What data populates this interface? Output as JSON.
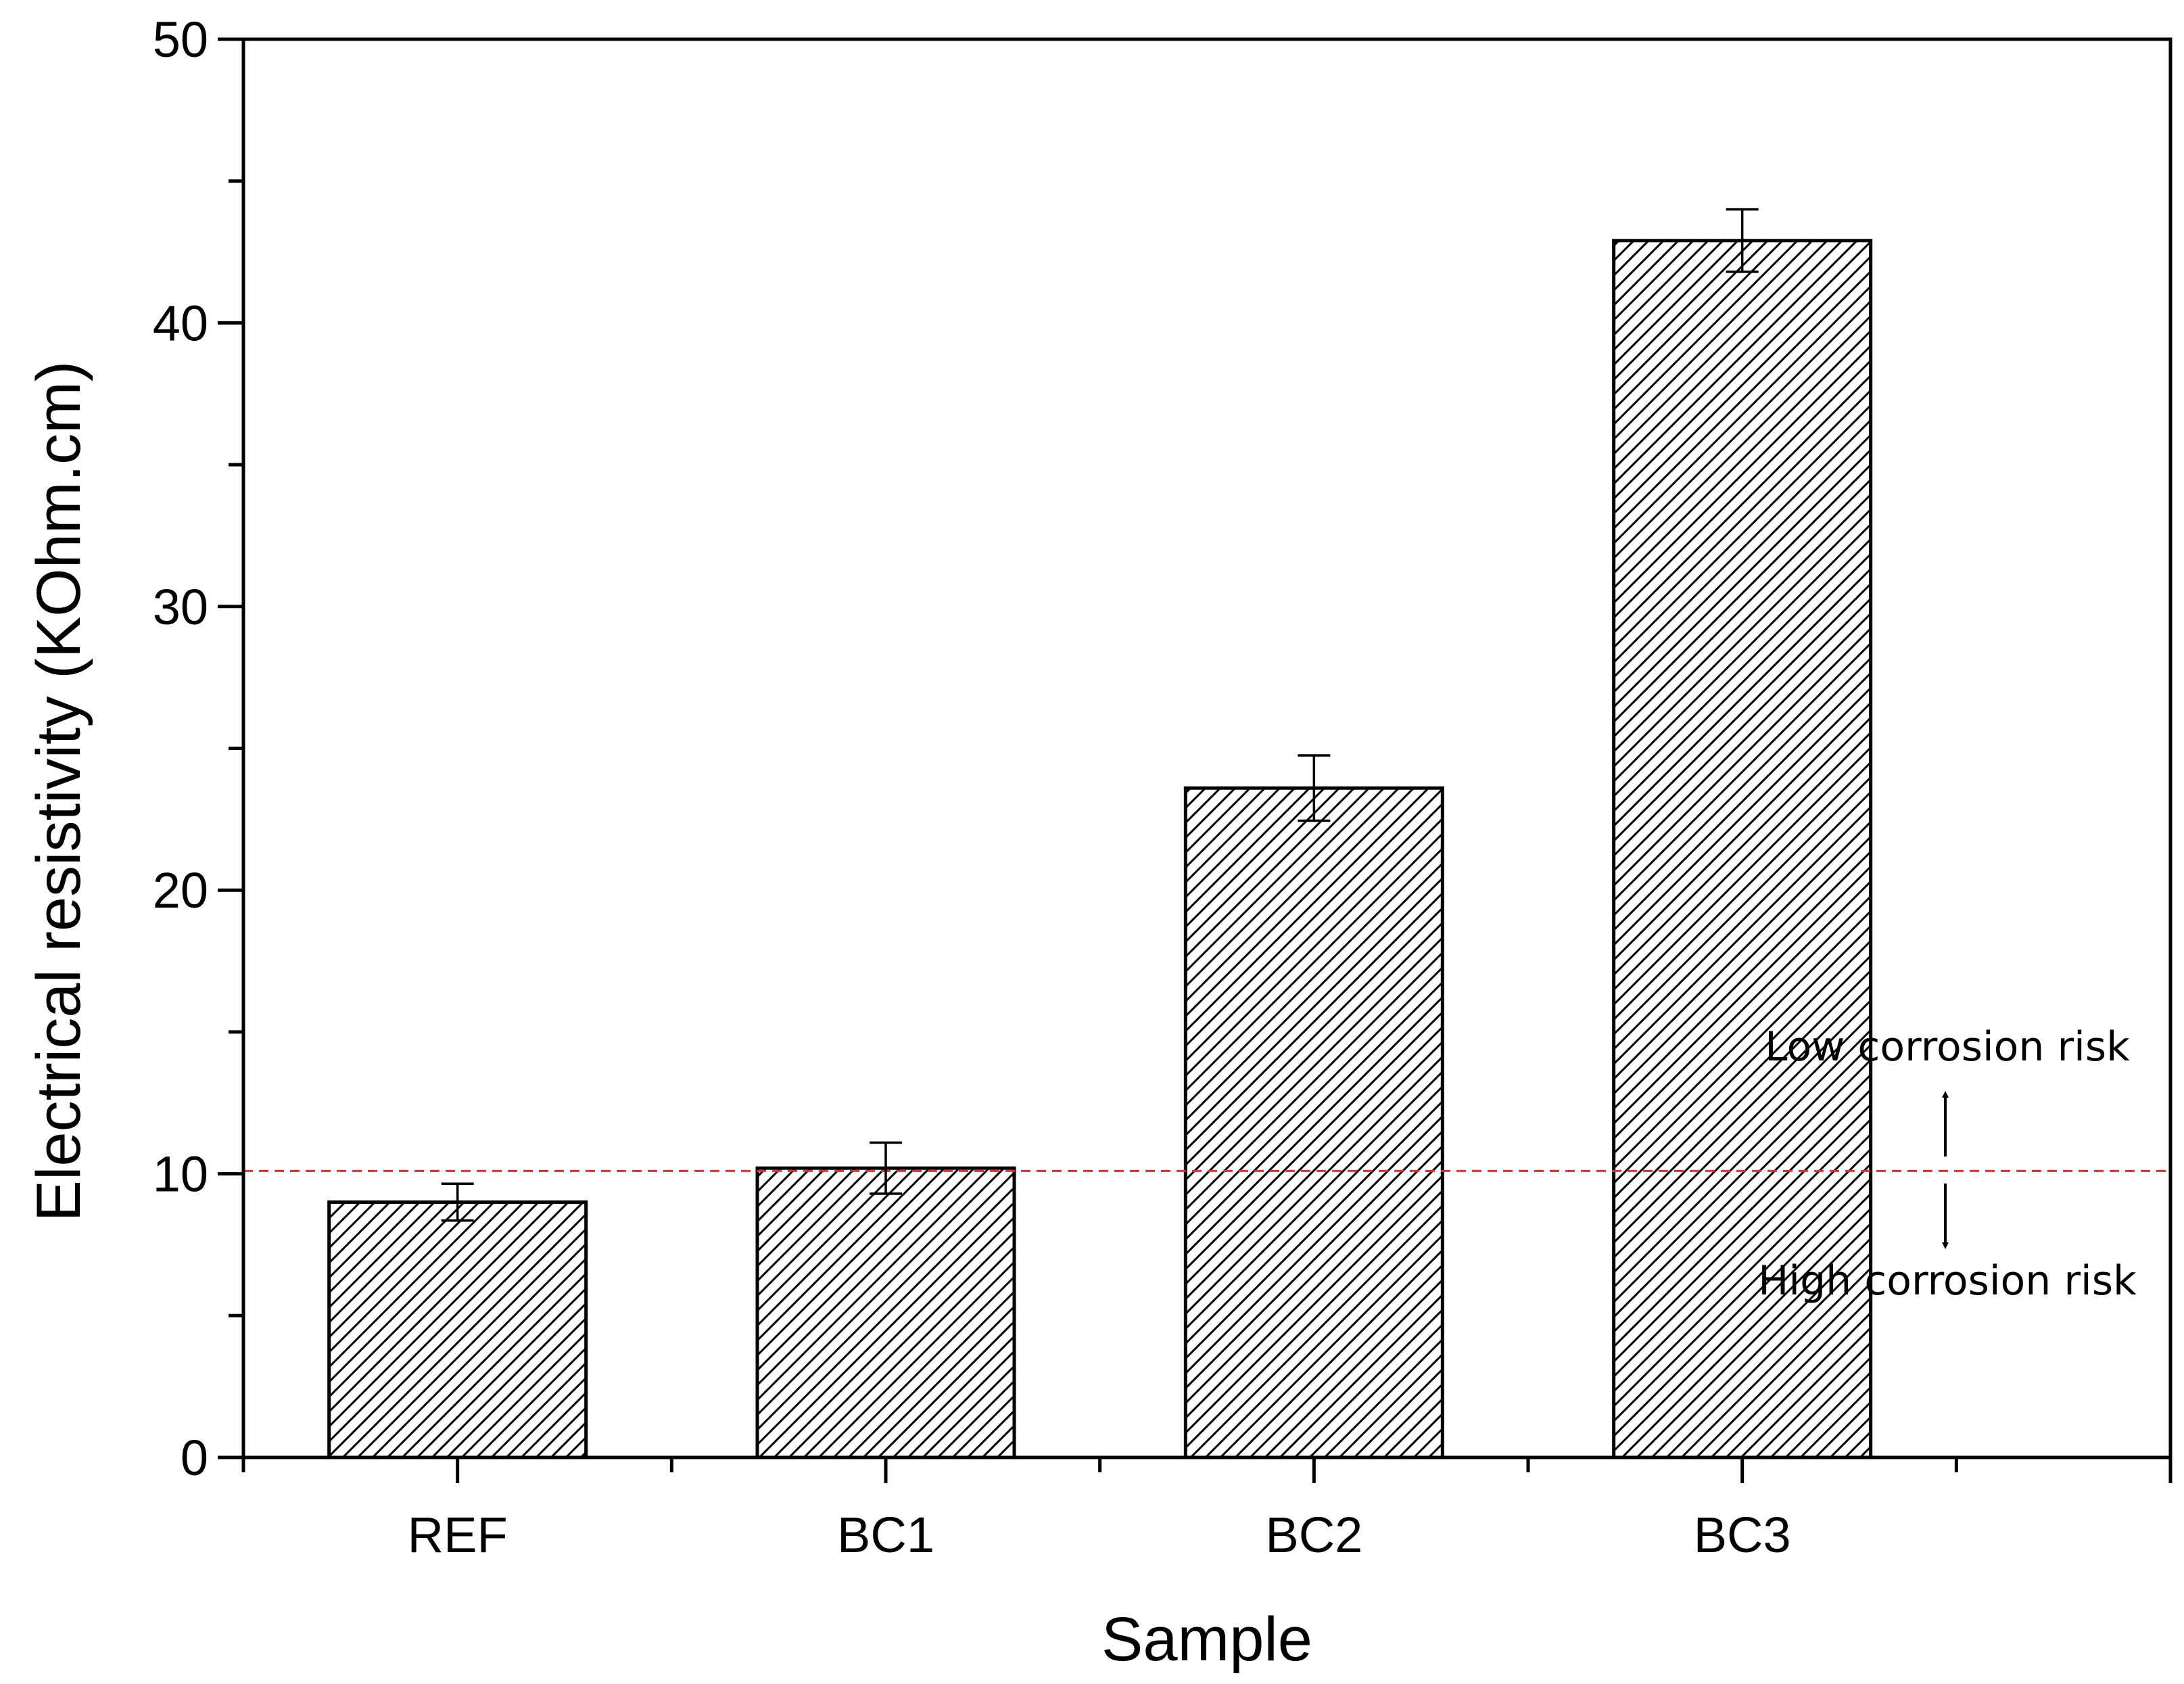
{
  "chart_data": {
    "type": "bar",
    "categories": [
      "REF",
      "BC1",
      "BC2",
      "BC3"
    ],
    "values": [
      9.0,
      10.2,
      23.6,
      42.9
    ],
    "errors": [
      0.65,
      0.9,
      1.15,
      1.1
    ],
    "xlabel": "Sample",
    "ylabel": "Electrical resistivity (KOhm.cm)",
    "ylim": [
      0,
      50
    ],
    "yticks": [
      0,
      10,
      20,
      30,
      40,
      50
    ],
    "y_minor_step": 5,
    "x_slots": 9,
    "threshold": {
      "value": 10.1,
      "color": "#e03030",
      "style": "dashed"
    },
    "annotations": {
      "low": "Low corrosion risk",
      "high": "High corrosion risk"
    },
    "bar_fill": "hatched",
    "grid": false
  }
}
